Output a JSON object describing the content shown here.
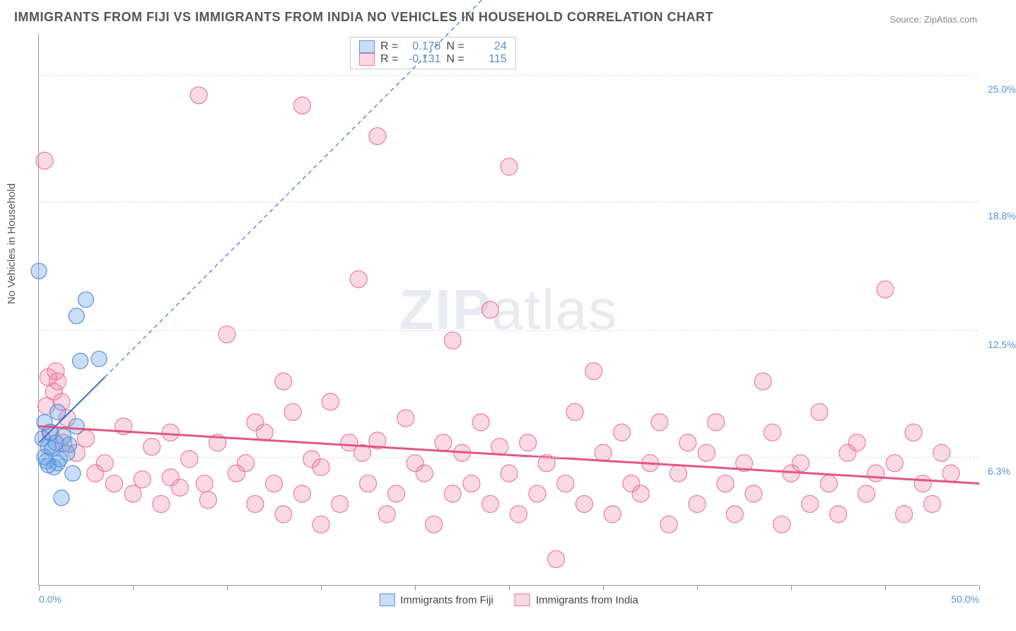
{
  "title": "IMMIGRANTS FROM FIJI VS IMMIGRANTS FROM INDIA NO VEHICLES IN HOUSEHOLD CORRELATION CHART",
  "source": "Source: ZipAtlas.com",
  "ylabel": "No Vehicles in Household",
  "watermark_bold": "ZIP",
  "watermark_thin": "atlas",
  "chart": {
    "type": "scatter",
    "xlim": [
      0,
      50
    ],
    "ylim": [
      0,
      27
    ],
    "y_gridlines": [
      6.3,
      12.5,
      18.8,
      25.0
    ],
    "y_tick_labels": [
      "6.3%",
      "12.5%",
      "18.8%",
      "25.0%"
    ],
    "x_ticks": [
      0,
      5,
      10,
      15,
      20,
      25,
      30,
      35,
      40,
      45,
      50
    ],
    "x_tick_labels_shown": {
      "0": "0.0%",
      "50": "50.0%"
    },
    "background_color": "#ffffff",
    "grid_color": "#dddddd",
    "axis_color": "#999999",
    "tick_label_color": "#5b8fd6"
  },
  "series": {
    "fiji": {
      "label": "Immigrants from Fiji",
      "color_fill": "rgba(100,160,230,0.35)",
      "color_stroke": "#5b8fd6",
      "marker_radius": 11,
      "R": "0.178",
      "N": "24",
      "trend": {
        "x1": 0,
        "y1": 7.0,
        "x2": 3.5,
        "y2": 10.2,
        "dash_x2": 25,
        "dash_y2": 30,
        "color": "#3a6fc9",
        "width": 2
      },
      "points": [
        [
          0.0,
          15.4
        ],
        [
          0.2,
          7.2
        ],
        [
          0.3,
          6.3
        ],
        [
          0.5,
          6.8
        ],
        [
          0.6,
          7.5
        ],
        [
          0.8,
          5.8
        ],
        [
          0.4,
          6.1
        ],
        [
          1.0,
          6.0
        ],
        [
          1.2,
          4.3
        ],
        [
          0.9,
          7.0
        ],
        [
          1.5,
          6.5
        ],
        [
          1.3,
          7.3
        ],
        [
          1.8,
          5.5
        ],
        [
          2.0,
          13.2
        ],
        [
          2.2,
          11.0
        ],
        [
          2.5,
          14.0
        ],
        [
          2.0,
          7.8
        ],
        [
          1.0,
          8.5
        ],
        [
          0.3,
          8.0
        ],
        [
          3.2,
          11.1
        ],
        [
          0.7,
          6.7
        ],
        [
          1.1,
          6.2
        ],
        [
          1.6,
          6.9
        ],
        [
          0.5,
          5.9
        ]
      ]
    },
    "india": {
      "label": "Immigrants from India",
      "color_fill": "rgba(240,130,170,0.30)",
      "color_stroke": "#e87ba3",
      "marker_radius": 12,
      "R": "-0.131",
      "N": "115",
      "trend": {
        "x1": 0,
        "y1": 7.8,
        "x2": 50,
        "y2": 5.0,
        "color": "#e25584",
        "width": 3
      },
      "points": [
        [
          0.3,
          20.8
        ],
        [
          0.5,
          10.2
        ],
        [
          0.8,
          9.5
        ],
        [
          1.0,
          10.0
        ],
        [
          1.2,
          9.0
        ],
        [
          1.5,
          8.2
        ],
        [
          0.6,
          7.5
        ],
        [
          0.4,
          8.8
        ],
        [
          0.9,
          10.5
        ],
        [
          1.3,
          7.0
        ],
        [
          2.0,
          6.5
        ],
        [
          2.5,
          7.2
        ],
        [
          3.0,
          5.5
        ],
        [
          3.5,
          6.0
        ],
        [
          4.0,
          5.0
        ],
        [
          4.5,
          7.8
        ],
        [
          5.0,
          4.5
        ],
        [
          5.5,
          5.2
        ],
        [
          6.0,
          6.8
        ],
        [
          6.5,
          4.0
        ],
        [
          7.0,
          7.5
        ],
        [
          7.0,
          5.3
        ],
        [
          7.5,
          4.8
        ],
        [
          8.0,
          6.2
        ],
        [
          8.5,
          24.0
        ],
        [
          8.8,
          5.0
        ],
        [
          9.0,
          4.2
        ],
        [
          9.5,
          7.0
        ],
        [
          10.0,
          12.3
        ],
        [
          10.5,
          5.5
        ],
        [
          11.0,
          6.0
        ],
        [
          11.5,
          4.0
        ],
        [
          12.0,
          7.5
        ],
        [
          12.5,
          5.0
        ],
        [
          13.0,
          10.0
        ],
        [
          13.5,
          8.5
        ],
        [
          14.0,
          4.5
        ],
        [
          14.0,
          23.5
        ],
        [
          14.5,
          6.2
        ],
        [
          15.0,
          5.8
        ],
        [
          15.5,
          9.0
        ],
        [
          16.0,
          4.0
        ],
        [
          16.5,
          7.0
        ],
        [
          17.0,
          15.0
        ],
        [
          17.2,
          6.5
        ],
        [
          17.5,
          5.0
        ],
        [
          18.0,
          22.0
        ],
        [
          18.0,
          7.1
        ],
        [
          18.5,
          3.5
        ],
        [
          19.0,
          4.5
        ],
        [
          19.5,
          8.2
        ],
        [
          20.0,
          6.0
        ],
        [
          20.5,
          5.5
        ],
        [
          21.0,
          3.0
        ],
        [
          21.5,
          7.0
        ],
        [
          22.0,
          12.0
        ],
        [
          22.0,
          4.5
        ],
        [
          22.5,
          6.5
        ],
        [
          23.0,
          5.0
        ],
        [
          23.5,
          8.0
        ],
        [
          24.0,
          4.0
        ],
        [
          24.0,
          13.5
        ],
        [
          24.5,
          6.8
        ],
        [
          25.0,
          20.5
        ],
        [
          25.0,
          5.5
        ],
        [
          25.5,
          3.5
        ],
        [
          26.0,
          7.0
        ],
        [
          26.5,
          4.5
        ],
        [
          27.0,
          6.0
        ],
        [
          27.5,
          1.3
        ],
        [
          28.0,
          5.0
        ],
        [
          28.5,
          8.5
        ],
        [
          29.0,
          4.0
        ],
        [
          29.5,
          10.5
        ],
        [
          30.0,
          6.5
        ],
        [
          30.5,
          3.5
        ],
        [
          31.0,
          7.5
        ],
        [
          31.5,
          5.0
        ],
        [
          32.0,
          4.5
        ],
        [
          32.5,
          6.0
        ],
        [
          33.0,
          8.0
        ],
        [
          33.5,
          3.0
        ],
        [
          34.0,
          5.5
        ],
        [
          34.5,
          7.0
        ],
        [
          35.0,
          4.0
        ],
        [
          35.5,
          6.5
        ],
        [
          36.0,
          8.0
        ],
        [
          36.5,
          5.0
        ],
        [
          37.0,
          3.5
        ],
        [
          37.5,
          6.0
        ],
        [
          38.0,
          4.5
        ],
        [
          38.5,
          10.0
        ],
        [
          39.0,
          7.5
        ],
        [
          39.5,
          3.0
        ],
        [
          40.0,
          5.5
        ],
        [
          40.5,
          6.0
        ],
        [
          41.0,
          4.0
        ],
        [
          41.5,
          8.5
        ],
        [
          42.0,
          5.0
        ],
        [
          42.5,
          3.5
        ],
        [
          43.0,
          6.5
        ],
        [
          43.5,
          7.0
        ],
        [
          44.0,
          4.5
        ],
        [
          44.5,
          5.5
        ],
        [
          45.0,
          14.5
        ],
        [
          45.5,
          6.0
        ],
        [
          46.0,
          3.5
        ],
        [
          46.5,
          7.5
        ],
        [
          47.0,
          5.0
        ],
        [
          47.5,
          4.0
        ],
        [
          48.0,
          6.5
        ],
        [
          48.5,
          5.5
        ],
        [
          11.5,
          8.0
        ],
        [
          13.0,
          3.5
        ],
        [
          15.0,
          3.0
        ]
      ]
    }
  },
  "legend_stats": {
    "r_label": "R  =",
    "n_label": "N  ="
  }
}
